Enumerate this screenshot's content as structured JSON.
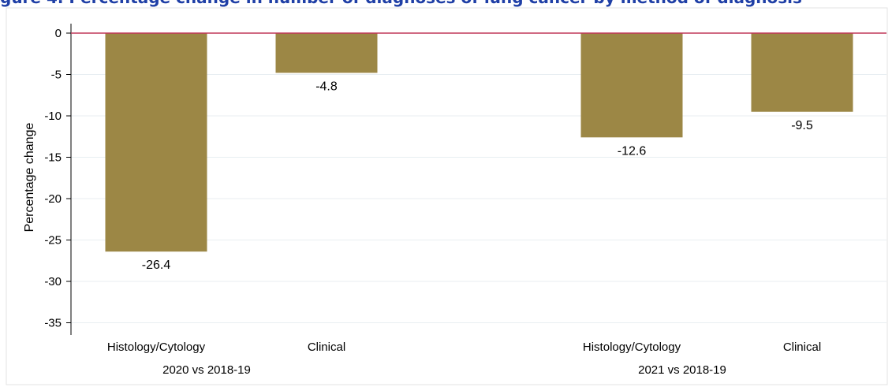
{
  "header": {
    "title": "gure 4. Percentage change in number of diagnoses of lung cancer by method of diagnosis"
  },
  "chart_data": {
    "type": "bar",
    "ylabel": "Percentage change",
    "ylim": [
      -36.5,
      3
    ],
    "yticks": [
      0,
      -5,
      -10,
      -15,
      -20,
      -25,
      -30,
      -35
    ],
    "grid": true,
    "groups": [
      {
        "label": "2020 vs 2018-19",
        "bars": [
          {
            "category": "Histology/Cytology",
            "value": -26.4,
            "label": "-26.4"
          },
          {
            "category": "Clinical",
            "value": -4.8,
            "label": "-4.8"
          }
        ]
      },
      {
        "label": "2021 vs 2018-19",
        "bars": [
          {
            "category": "Histology/Cytology",
            "value": -12.6,
            "label": "-12.6"
          },
          {
            "category": "Clinical",
            "value": -9.5,
            "label": "-9.5"
          }
        ]
      }
    ],
    "colors": {
      "bar": "#9c8745",
      "zero_line": "#c0395a",
      "grid": "#e8eef2",
      "axis": "#000000",
      "frame": "#e3e3e3"
    }
  }
}
